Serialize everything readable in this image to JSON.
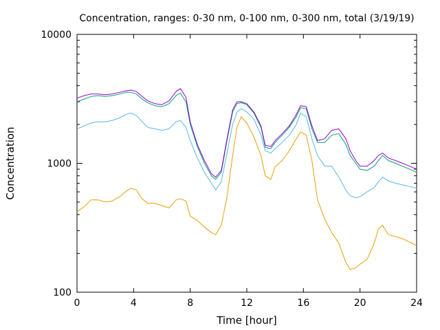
{
  "chart_data": {
    "type": "line",
    "title": "Concentration, ranges: 0-30 nm, 0-100 nm, 0-300 nm, total (3/19/19)",
    "xlabel": "Time [hour]",
    "ylabel": "Concentration",
    "xlim": [
      0,
      24
    ],
    "ylim": [
      100,
      10000
    ],
    "yscale": "log",
    "grid": false,
    "x_ticks": [
      0,
      4,
      8,
      12,
      16,
      20,
      24
    ],
    "x_tick_labels": [
      "0",
      "4",
      "8",
      "12",
      "16",
      "20",
      "24"
    ],
    "y_major_ticks": [
      100,
      1000,
      10000
    ],
    "y_tick_labels": [
      "100",
      "1000",
      "10000"
    ],
    "colors": [
      "#e69f00",
      "#56b4e9",
      "#009e73",
      "#9400d3"
    ],
    "series": [
      {
        "color": "#e69f00",
        "x": [
          0,
          0.5,
          1,
          1.5,
          2,
          2.5,
          3,
          3.5,
          3.8,
          4.2,
          4.6,
          5,
          5.5,
          6,
          6.5,
          7,
          7.3,
          7.7,
          8,
          8.5,
          9,
          9.5,
          9.8,
          10.2,
          10.6,
          11,
          11.3,
          11.6,
          12,
          12.5,
          13,
          13.3,
          13.7,
          14,
          14.5,
          15,
          15.5,
          15.8,
          16.2,
          16.6,
          17,
          17.5,
          18,
          18.5,
          19,
          19.3,
          19.7,
          20,
          20.5,
          21,
          21.3,
          21.6,
          22,
          22.5,
          23,
          23.5,
          24
        ],
        "y": [
          420,
          460,
          520,
          520,
          500,
          510,
          550,
          610,
          640,
          620,
          530,
          490,
          490,
          470,
          450,
          520,
          530,
          510,
          390,
          360,
          320,
          290,
          280,
          330,
          550,
          1150,
          1900,
          2300,
          2050,
          1600,
          1150,
          800,
          750,
          940,
          1050,
          1250,
          1550,
          1750,
          1650,
          1050,
          520,
          370,
          290,
          240,
          170,
          150,
          155,
          165,
          180,
          240,
          310,
          330,
          280,
          270,
          260,
          245,
          230
        ]
      },
      {
        "color": "#56b4e9",
        "x": [
          0,
          0.5,
          1,
          1.5,
          2,
          2.5,
          3,
          3.5,
          3.8,
          4.2,
          4.6,
          5,
          5.5,
          6,
          6.5,
          7,
          7.3,
          7.7,
          8,
          8.5,
          9,
          9.5,
          9.8,
          10.2,
          10.6,
          11,
          11.3,
          11.6,
          12,
          12.5,
          13,
          13.3,
          13.7,
          14,
          14.5,
          15,
          15.5,
          15.8,
          16.2,
          16.6,
          17,
          17.5,
          18,
          18.5,
          19,
          19.3,
          19.7,
          20,
          20.5,
          21,
          21.3,
          21.6,
          22,
          22.5,
          23,
          23.5,
          24
        ],
        "y": [
          1850,
          1950,
          2050,
          2100,
          2100,
          2150,
          2250,
          2400,
          2450,
          2350,
          2100,
          1900,
          1850,
          1800,
          1850,
          2100,
          2150,
          1900,
          1500,
          1100,
          850,
          700,
          620,
          720,
          1200,
          2000,
          2500,
          2650,
          2500,
          2200,
          1650,
          1250,
          1200,
          1300,
          1450,
          1650,
          2000,
          2450,
          2300,
          1550,
          1150,
          950,
          950,
          780,
          620,
          560,
          540,
          550,
          600,
          650,
          720,
          780,
          730,
          700,
          680,
          660,
          640
        ]
      },
      {
        "color": "#009e73",
        "x": [
          0,
          0.5,
          1,
          1.5,
          2,
          2.5,
          3,
          3.5,
          3.8,
          4.2,
          4.6,
          5,
          5.5,
          6,
          6.5,
          7,
          7.3,
          7.7,
          8,
          8.5,
          9,
          9.5,
          9.8,
          10.2,
          10.6,
          11,
          11.3,
          11.6,
          12,
          12.5,
          13,
          13.3,
          13.7,
          14,
          14.5,
          15,
          15.5,
          15.8,
          16.2,
          16.6,
          17,
          17.5,
          18,
          18.5,
          19,
          19.3,
          19.7,
          20,
          20.5,
          21,
          21.3,
          21.6,
          22,
          22.5,
          23,
          23.5,
          24
        ],
        "y": [
          3000,
          3150,
          3300,
          3350,
          3300,
          3350,
          3450,
          3550,
          3550,
          3450,
          3150,
          2950,
          2800,
          2750,
          2900,
          3350,
          3500,
          3000,
          2000,
          1350,
          1000,
          800,
          750,
          850,
          1500,
          2500,
          2900,
          2950,
          2850,
          2450,
          1900,
          1330,
          1300,
          1450,
          1650,
          1900,
          2300,
          2700,
          2650,
          1850,
          1450,
          1450,
          1650,
          1700,
          1400,
          1150,
          1000,
          900,
          880,
          950,
          1050,
          1150,
          1050,
          1000,
          950,
          900,
          850
        ]
      },
      {
        "color": "#9400d3",
        "x": [
          0,
          0.5,
          1,
          1.5,
          2,
          2.5,
          3,
          3.5,
          3.8,
          4.2,
          4.6,
          5,
          5.5,
          6,
          6.5,
          7,
          7.3,
          7.7,
          8,
          8.5,
          9,
          9.5,
          9.8,
          10.2,
          10.6,
          11,
          11.3,
          11.6,
          12,
          12.5,
          13,
          13.3,
          13.7,
          14,
          14.5,
          15,
          15.5,
          15.8,
          16.2,
          16.6,
          17,
          17.5,
          18,
          18.5,
          19,
          19.3,
          19.7,
          20,
          20.5,
          21,
          21.3,
          21.6,
          22,
          22.5,
          23,
          23.5,
          24
        ],
        "y": [
          3200,
          3350,
          3450,
          3450,
          3400,
          3450,
          3550,
          3650,
          3700,
          3600,
          3300,
          3050,
          2900,
          2850,
          3050,
          3600,
          3800,
          3250,
          2100,
          1400,
          1050,
          830,
          780,
          880,
          1550,
          2600,
          3000,
          3000,
          2900,
          2500,
          1950,
          1380,
          1350,
          1500,
          1700,
          1950,
          2400,
          2800,
          2750,
          1950,
          1500,
          1550,
          1800,
          1850,
          1550,
          1250,
          1050,
          950,
          950,
          1050,
          1150,
          1200,
          1100,
          1050,
          1000,
          950,
          900
        ]
      }
    ]
  }
}
